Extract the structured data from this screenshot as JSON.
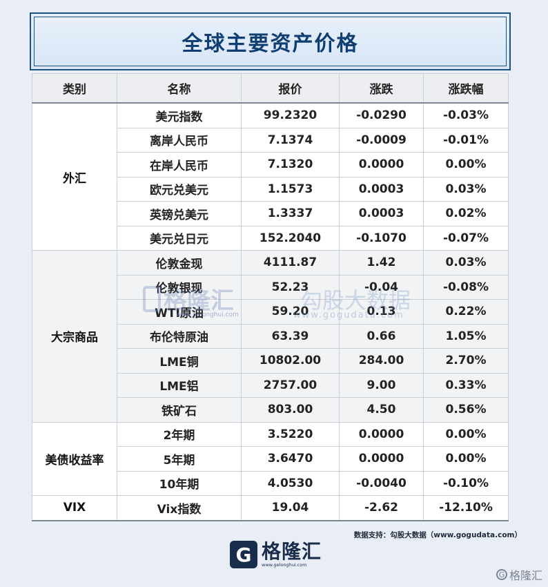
{
  "title": "全球主要资产价格",
  "columns": [
    "类别",
    "名称",
    "报价",
    "涨跌",
    "涨跌幅"
  ],
  "groups": [
    {
      "category": "外汇",
      "rows": [
        {
          "name": "美元指数",
          "price": "99.2320",
          "change": "-0.0290",
          "pct": "-0.03%",
          "dir": "down"
        },
        {
          "name": "离岸人民币",
          "price": "7.1374",
          "change": "-0.0009",
          "pct": "-0.01%",
          "dir": "down"
        },
        {
          "name": "在岸人民币",
          "price": "7.1320",
          "change": "0.0000",
          "pct": "0.00%",
          "dir": "flat"
        },
        {
          "name": "欧元兑美元",
          "price": "1.1573",
          "change": "0.0003",
          "pct": "0.03%",
          "dir": "up"
        },
        {
          "name": "英镑兑美元",
          "price": "1.3337",
          "change": "0.0003",
          "pct": "0.02%",
          "dir": "up"
        },
        {
          "name": "美元兑日元",
          "price": "152.2040",
          "change": "-0.1070",
          "pct": "-0.07%",
          "dir": "down"
        }
      ]
    },
    {
      "category": "大宗商品",
      "rows": [
        {
          "name": "伦敦金现",
          "price": "4111.87",
          "change": "1.42",
          "pct": "0.03%",
          "dir": "up"
        },
        {
          "name": "伦敦银现",
          "price": "52.23",
          "change": "-0.04",
          "pct": "-0.08%",
          "dir": "down"
        },
        {
          "name": "WTI原油",
          "price": "59.20",
          "change": "0.13",
          "pct": "0.22%",
          "dir": "up"
        },
        {
          "name": "布伦特原油",
          "price": "63.39",
          "change": "0.66",
          "pct": "1.05%",
          "dir": "up"
        },
        {
          "name": "LME铜",
          "price": "10802.00",
          "change": "284.00",
          "pct": "2.70%",
          "dir": "up"
        },
        {
          "name": "LME铝",
          "price": "2757.00",
          "change": "9.00",
          "pct": "0.33%",
          "dir": "up"
        },
        {
          "name": "铁矿石",
          "price": "803.00",
          "change": "4.50",
          "pct": "0.56%",
          "dir": "up"
        }
      ]
    },
    {
      "category": "美债收益率",
      "rows": [
        {
          "name": "2年期",
          "price": "3.5220",
          "change": "0.0000",
          "pct": "0.00%",
          "dir": "flat"
        },
        {
          "name": "5年期",
          "price": "3.6470",
          "change": "0.0000",
          "pct": "0.00%",
          "dir": "flat"
        },
        {
          "name": "10年期",
          "price": "4.0530",
          "change": "-0.0040",
          "pct": "-0.10%",
          "dir": "down"
        }
      ]
    },
    {
      "category": "VIX",
      "rows": [
        {
          "name": "Vix指数",
          "price": "19.04",
          "change": "-2.62",
          "pct": "-12.10%",
          "dir": "down"
        }
      ]
    }
  ],
  "watermark": {
    "logo_text": "格隆汇",
    "logo_url": "www.gelonghui.com",
    "partner_text": "勾股大数据",
    "partner_url": "www.gogudata.com"
  },
  "source": "数据支持：勾股大数据（www.gogudata.com）",
  "brand": {
    "icon": "G",
    "name": "格隆汇",
    "url": "www.gelonghui.com"
  },
  "corner_mark": "格隆汇",
  "colors": {
    "up": "#c8141e",
    "down": "#1c9e24",
    "flat": "#111111",
    "title": "#103e73"
  }
}
